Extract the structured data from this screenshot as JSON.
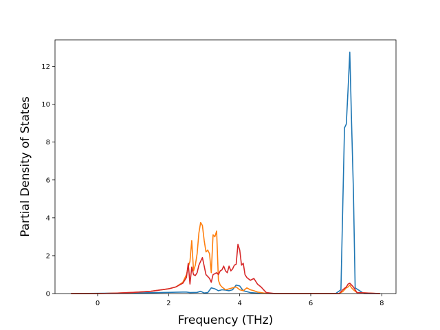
{
  "chart_data": {
    "type": "line",
    "title": "",
    "xlabel": "Frequency (THz)",
    "ylabel": "Partial Density of States",
    "xlim": [
      -1.2,
      8.4
    ],
    "ylim": [
      0,
      13.4
    ],
    "xticks": [
      0,
      2,
      4,
      6,
      8
    ],
    "yticks": [
      0,
      2,
      4,
      6,
      8,
      10,
      12
    ],
    "xtick_labels": [
      "0",
      "2",
      "4",
      "6",
      "8"
    ],
    "ytick_labels": [
      "0",
      "2",
      "4",
      "6",
      "8",
      "10",
      "12"
    ],
    "grid": false,
    "legend": "none",
    "series": [
      {
        "color": "#1f77b4",
        "x": [
          -0.75,
          0.0,
          1.0,
          2.0,
          2.4,
          2.5,
          2.6,
          2.8,
          2.9,
          3.0,
          3.1,
          3.2,
          3.3,
          3.4,
          3.5,
          3.6,
          3.7,
          3.8,
          3.9,
          4.0,
          4.1,
          4.2,
          4.3,
          4.5,
          5.0,
          6.0,
          6.7,
          6.85,
          6.9,
          6.95,
          7.0,
          7.05,
          7.1,
          7.15,
          7.2,
          7.25,
          7.5,
          7.95
        ],
        "y": [
          0,
          0.01,
          0.03,
          0.06,
          0.08,
          0.08,
          0.05,
          0.06,
          0.12,
          0.03,
          0.05,
          0.3,
          0.25,
          0.15,
          0.2,
          0.18,
          0.15,
          0.2,
          0.45,
          0.4,
          0.15,
          0.1,
          0.05,
          0.02,
          0,
          0,
          0,
          0.2,
          4.5,
          8.75,
          8.95,
          10.8,
          12.75,
          9.0,
          5.5,
          0.3,
          0,
          0
        ]
      },
      {
        "color": "#ff7f0e",
        "x": [
          -0.75,
          0.0,
          0.5,
          1.0,
          1.5,
          2.0,
          2.2,
          2.4,
          2.5,
          2.55,
          2.6,
          2.65,
          2.7,
          2.75,
          2.8,
          2.85,
          2.9,
          2.95,
          3.0,
          3.05,
          3.1,
          3.15,
          3.2,
          3.25,
          3.3,
          3.35,
          3.4,
          3.45,
          3.5,
          3.6,
          3.7,
          3.8,
          3.9,
          4.0,
          4.1,
          4.2,
          4.3,
          4.4,
          4.5,
          4.7,
          5.0,
          6.0,
          6.8,
          6.9,
          7.0,
          7.05,
          7.1,
          7.15,
          7.2,
          7.3,
          7.95
        ],
        "y": [
          0,
          0,
          0.02,
          0.06,
          0.12,
          0.25,
          0.35,
          0.6,
          1.0,
          1.4,
          1.7,
          2.8,
          1.2,
          1.5,
          2.1,
          3.2,
          3.75,
          3.6,
          2.8,
          2.2,
          2.3,
          2.1,
          1.1,
          3.1,
          3.0,
          3.3,
          0.7,
          0.45,
          0.35,
          0.2,
          0.25,
          0.3,
          0.35,
          0.2,
          0.15,
          0.3,
          0.2,
          0.15,
          0.08,
          0.02,
          0,
          0,
          0,
          0.1,
          0.3,
          0.35,
          0.45,
          0.3,
          0.2,
          0.05,
          0
        ]
      },
      {
        "color": "#d62728",
        "x": [
          -0.75,
          0.0,
          0.5,
          1.0,
          1.5,
          2.0,
          2.2,
          2.4,
          2.5,
          2.55,
          2.6,
          2.65,
          2.7,
          2.75,
          2.8,
          2.85,
          2.9,
          2.95,
          3.0,
          3.05,
          3.1,
          3.15,
          3.2,
          3.25,
          3.3,
          3.35,
          3.4,
          3.45,
          3.5,
          3.55,
          3.6,
          3.65,
          3.7,
          3.75,
          3.8,
          3.85,
          3.9,
          3.95,
          4.0,
          4.05,
          4.1,
          4.15,
          4.2,
          4.3,
          4.4,
          4.5,
          4.6,
          4.7,
          4.75,
          5.0,
          6.0,
          6.8,
          6.9,
          7.0,
          7.05,
          7.1,
          7.15,
          7.2,
          7.3,
          7.95
        ],
        "y": [
          0,
          0,
          0.02,
          0.06,
          0.12,
          0.25,
          0.35,
          0.55,
          0.85,
          1.6,
          0.5,
          1.4,
          1.0,
          0.95,
          1.1,
          1.5,
          1.7,
          1.9,
          1.45,
          1.0,
          0.9,
          0.8,
          0.6,
          1.0,
          1.05,
          1.1,
          1.0,
          1.2,
          1.25,
          1.45,
          1.2,
          1.1,
          1.45,
          1.2,
          1.3,
          1.5,
          1.55,
          2.6,
          2.3,
          1.5,
          1.6,
          1.0,
          0.85,
          0.7,
          0.8,
          0.5,
          0.35,
          0.15,
          0.05,
          0,
          0,
          0,
          0.2,
          0.35,
          0.5,
          0.55,
          0.45,
          0.35,
          0.05,
          0
        ]
      }
    ]
  }
}
